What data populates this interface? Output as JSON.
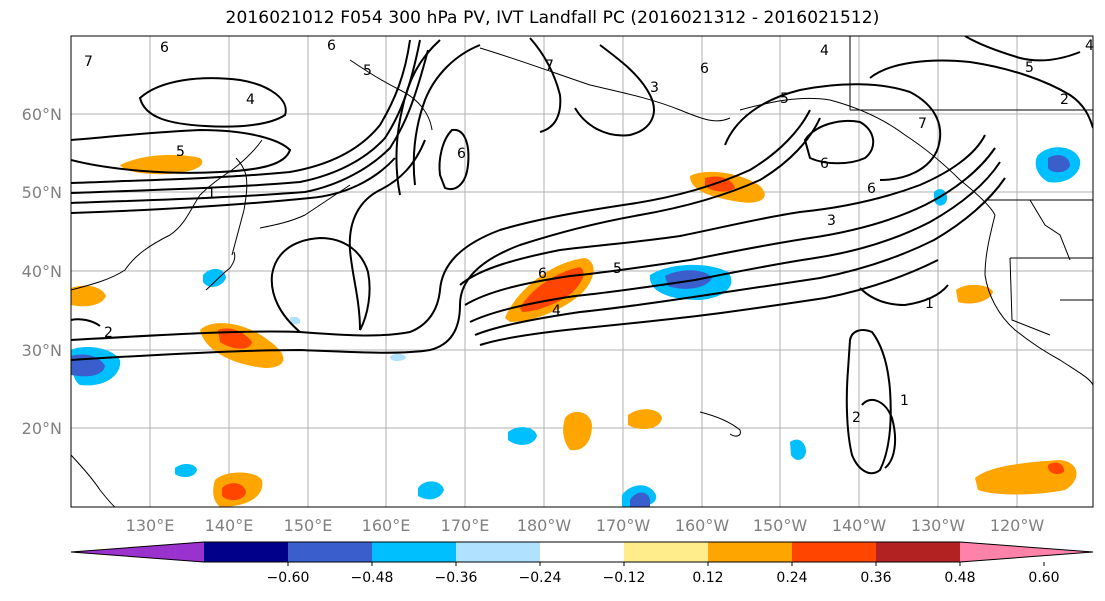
{
  "title": "2016021012 F054 300 hPa PV, IVT Landfall PC (2016021312 - 2016021512)",
  "map": {
    "lat_labels": [
      "60°N",
      "50°N",
      "40°N",
      "30°N",
      "20°N"
    ],
    "lon_labels": [
      "130°E",
      "140°E",
      "150°E",
      "160°E",
      "170°E",
      "180°W",
      "170°W",
      "160°W",
      "150°W",
      "140°W",
      "130°W",
      "120°W"
    ],
    "contour_labels": [
      "6",
      "6",
      "7",
      "5",
      "4",
      "7",
      "6",
      "5",
      "4",
      "3",
      "2",
      "5",
      "1",
      "6",
      "5",
      "4",
      "7",
      "6",
      "6",
      "3",
      "1",
      "2",
      "1",
      "2",
      "5",
      "6",
      "4"
    ],
    "land_color": "#ffffff",
    "grid_color": "#b0b0b0",
    "contour_color": "#000000"
  },
  "colorbar": {
    "colors": [
      "#9a32cd",
      "#00008b",
      "#3a5fcd",
      "#00bfff",
      "#b0e2ff",
      "#ffffff",
      "#ffec8b",
      "#ffa500",
      "#ff4500",
      "#b22222",
      "#ff82ab"
    ],
    "tick_labels": [
      "−0.60",
      "−0.48",
      "−0.36",
      "−0.24",
      "−0.12",
      "0.12",
      "0.24",
      "0.36",
      "0.48",
      "0.60"
    ],
    "tick_values": [
      -0.6,
      -0.48,
      -0.36,
      -0.24,
      -0.12,
      0.12,
      0.24,
      0.36,
      0.48,
      0.6
    ]
  }
}
